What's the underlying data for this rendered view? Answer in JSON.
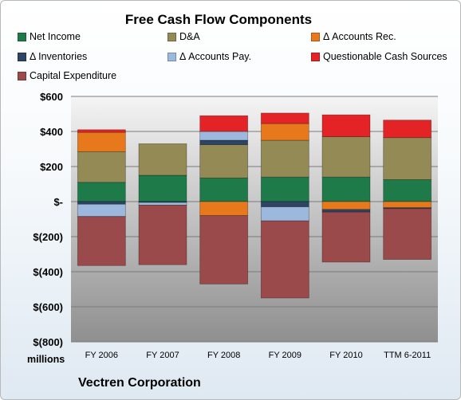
{
  "chart_data": {
    "type": "bar",
    "stacked": true,
    "title": "Free Cash Flow Components",
    "unit_label": "millions",
    "footer": "Vectren Corporation",
    "categories": [
      "FY 2006",
      "FY 2007",
      "FY 2008",
      "FY 2009",
      "FY 2010",
      "TTM 6-2011"
    ],
    "ylim": [
      -800,
      600
    ],
    "yticks": [
      600,
      400,
      200,
      0,
      -200,
      -400,
      -600,
      -800
    ],
    "ytick_labels": [
      "$600",
      "$400",
      "$200",
      "$-",
      "$(200)",
      "$(400)",
      "$(600)",
      "$(800)"
    ],
    "grid": true,
    "legend": "top",
    "series": [
      {
        "name": "Net Income",
        "color": "#1f7a4a",
        "values": [
          110,
          150,
          135,
          140,
          140,
          125
        ]
      },
      {
        "name": "D&A",
        "color": "#938a55",
        "values": [
          175,
          180,
          190,
          210,
          230,
          240
        ]
      },
      {
        "name": "Δ Accounts Rec.",
        "color": "#e8781c",
        "values": [
          110,
          0,
          -80,
          95,
          -45,
          -35
        ]
      },
      {
        "name": "Δ Inventories",
        "color": "#2d4466",
        "values": [
          -15,
          -5,
          25,
          -30,
          -15,
          -5
        ]
      },
      {
        "name": "Δ Accounts Pay.",
        "color": "#9cb8dc",
        "values": [
          -70,
          -15,
          50,
          -80,
          0,
          0
        ]
      },
      {
        "name": "Questionable Cash Sources",
        "color": "#e42326",
        "values": [
          15,
          0,
          90,
          60,
          125,
          100
        ]
      },
      {
        "name": "Capital Expenditure",
        "color": "#9a4a4a",
        "values": [
          -280,
          -340,
          -390,
          -440,
          -285,
          -290
        ]
      }
    ]
  }
}
